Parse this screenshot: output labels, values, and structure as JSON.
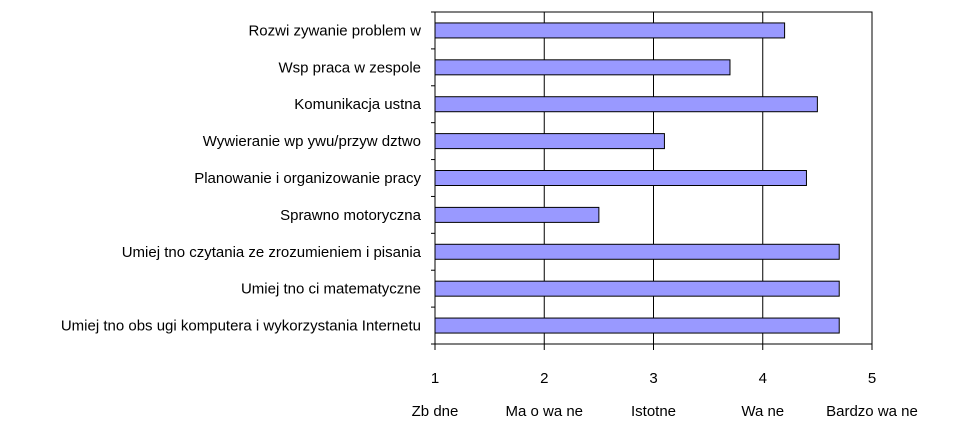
{
  "chart_data": {
    "type": "bar",
    "orientation": "horizontal",
    "categories": [
      "Rozwi zywanie problem w",
      "Wsp praca w zespole",
      "Komunikacja ustna",
      "Wywieranie wp ywu/przyw dztwo",
      "Planowanie i organizowanie pracy",
      "Sprawno motoryczna",
      "Umiej tno czytania ze zrozumieniem i pisania",
      "Umiej tno ci matematyczne",
      "Umiej tno obs ugi komputera i wykorzystania Internetu"
    ],
    "values": [
      4.2,
      3.7,
      4.5,
      3.1,
      4.4,
      2.5,
      4.7,
      4.7,
      4.7
    ],
    "xlim": [
      1,
      5
    ],
    "xticks": [
      "1",
      "2",
      "3",
      "4",
      "5"
    ],
    "scale_labels": [
      "Zb dne",
      "Ma o wa ne",
      "Istotne",
      "Wa ne",
      "Bardzo wa ne"
    ],
    "grid": true,
    "legend": "none",
    "colors": {
      "bar_fill": "#9999ff",
      "bar_stroke": "#000000",
      "grid": "#000000"
    }
  }
}
